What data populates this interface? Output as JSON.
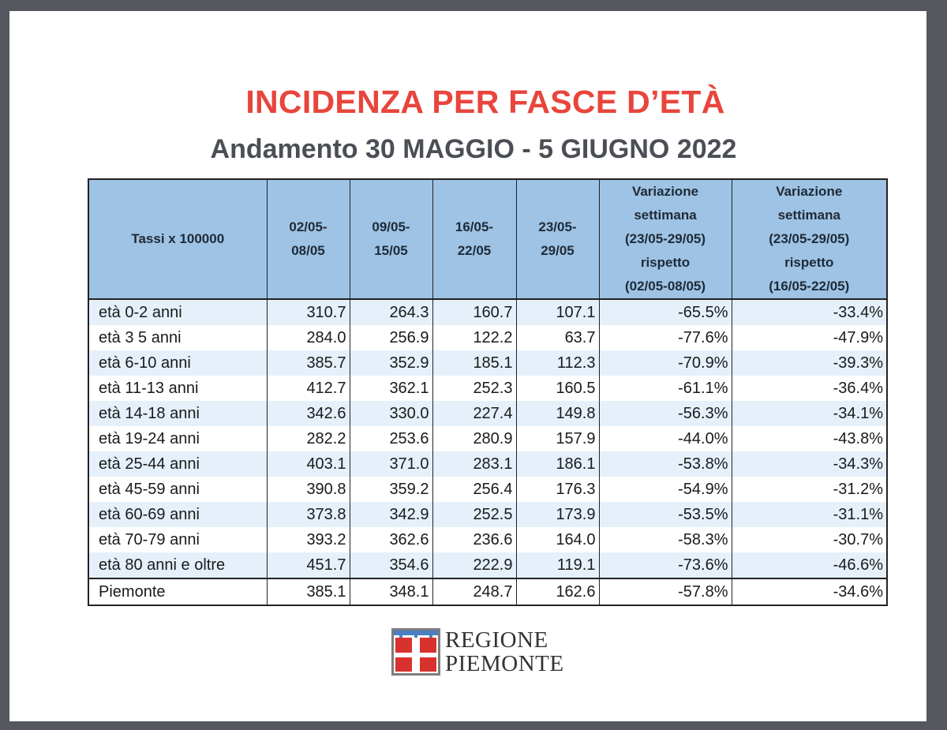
{
  "title": "INCIDENZA PER FASCE D’ETÀ",
  "subtitle": "Andamento 30 MAGGIO - 5 GIUGNO 2022",
  "table": {
    "header": {
      "label": "Tassi x 100000",
      "weeks": [
        [
          "02/05-",
          "08/05"
        ],
        [
          "09/05-",
          "15/05"
        ],
        [
          "16/05-",
          "22/05"
        ],
        [
          "23/05-",
          "29/05"
        ]
      ],
      "var1": [
        "Variazione",
        "settimana",
        "(23/05-29/05)",
        "rispetto",
        "(02/05-08/05)"
      ],
      "var2": [
        "Variazione",
        "settimana",
        "(23/05-29/05)",
        "rispetto",
        "(16/05-22/05)"
      ]
    },
    "rows": [
      [
        "età 0-2 anni",
        "310.7",
        "264.3",
        "160.7",
        "107.1",
        "-65.5%",
        "-33.4%"
      ],
      [
        "età 3 5 anni",
        "284.0",
        "256.9",
        "122.2",
        "63.7",
        "-77.6%",
        "-47.9%"
      ],
      [
        "età 6-10 anni",
        "385.7",
        "352.9",
        "185.1",
        "112.3",
        "-70.9%",
        "-39.3%"
      ],
      [
        "età 11-13 anni",
        "412.7",
        "362.1",
        "252.3",
        "160.5",
        "-61.1%",
        "-36.4%"
      ],
      [
        "età 14-18 anni",
        "342.6",
        "330.0",
        "227.4",
        "149.8",
        "-56.3%",
        "-34.1%"
      ],
      [
        "età 19-24 anni",
        "282.2",
        "253.6",
        "280.9",
        "157.9",
        "-44.0%",
        "-43.8%"
      ],
      [
        "età 25-44 anni",
        "403.1",
        "371.0",
        "283.1",
        "186.1",
        "-53.8%",
        "-34.3%"
      ],
      [
        "età 45-59 anni",
        "390.8",
        "359.2",
        "256.4",
        "176.3",
        "-54.9%",
        "-31.2%"
      ],
      [
        "età 60-69 anni",
        "373.8",
        "342.9",
        "252.5",
        "173.9",
        "-53.5%",
        "-31.1%"
      ],
      [
        "età 70-79 anni",
        "393.2",
        "362.6",
        "236.6",
        "164.0",
        "-58.3%",
        "-30.7%"
      ],
      [
        "età 80 anni e oltre",
        "451.7",
        "354.6",
        "222.9",
        "119.1",
        "-73.6%",
        "-46.6%"
      ]
    ],
    "total": [
      "Piemonte",
      "385.1",
      "348.1",
      "248.7",
      "162.6",
      "-57.8%",
      "-34.6%"
    ]
  },
  "logo": {
    "line1": "REGIONE",
    "line2": "PIEMONTE",
    "icon": "regione-piemonte-crest-icon"
  },
  "colors": {
    "title": "#e8453c",
    "subtitle": "#4b4f55",
    "header_bg": "#9ec3e4",
    "row_stripe": "#e5f0fa",
    "frame": "#54585e"
  }
}
